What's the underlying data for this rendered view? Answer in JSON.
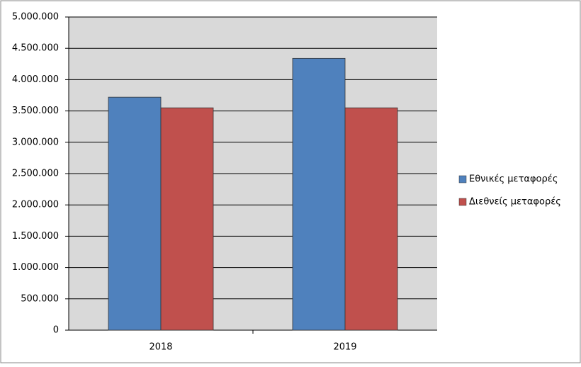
{
  "chart_data": {
    "type": "bar",
    "categories": [
      "2018",
      "2019"
    ],
    "series": [
      {
        "name": "Εθνικές μεταφορές",
        "color": "#4f81bd",
        "values": [
          3720000,
          4340000
        ]
      },
      {
        "name": "Διεθνείς μεταφορές",
        "color": "#c0504d",
        "values": [
          3550000,
          3550000
        ]
      }
    ],
    "ylim": [
      0,
      5000000
    ],
    "yticks": [
      0,
      {
        "value": 500000,
        "label": "500.000"
      },
      {
        "value": 1000000,
        "label": "1.000.000"
      },
      {
        "value": 1500000,
        "label": "1.500.000"
      },
      {
        "value": 2000000,
        "label": "2.000.000"
      },
      {
        "value": 2500000,
        "label": "2.500.000"
      },
      {
        "value": 3000000,
        "label": "3.000.000"
      },
      {
        "value": 3500000,
        "label": "3.500.000"
      },
      {
        "value": 4000000,
        "label": "4.000.000"
      },
      {
        "value": 4500000,
        "label": "4.500.000"
      },
      {
        "value": 5000000,
        "label": "5.000.000"
      }
    ],
    "grid": true,
    "legend": "right"
  }
}
